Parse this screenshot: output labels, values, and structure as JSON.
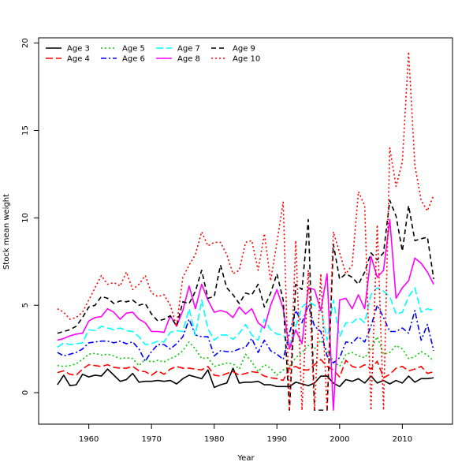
{
  "chart_data": {
    "type": "line",
    "title": "",
    "xlabel": "Year",
    "ylabel": "Stock mean weight",
    "xlim": [
      1952,
      2018
    ],
    "ylim": [
      -1.8,
      20.3
    ],
    "xticks": [
      1960,
      1970,
      1980,
      1990,
      2000,
      2010
    ],
    "yticks": [
      0,
      5,
      10,
      15,
      20
    ],
    "grid": false,
    "legend_position": "top-left",
    "x": [
      1955,
      1956,
      1957,
      1958,
      1959,
      1960,
      1961,
      1962,
      1963,
      1964,
      1965,
      1966,
      1967,
      1968,
      1969,
      1970,
      1971,
      1972,
      1973,
      1974,
      1975,
      1976,
      1977,
      1978,
      1979,
      1980,
      1981,
      1982,
      1983,
      1984,
      1985,
      1986,
      1987,
      1988,
      1989,
      1990,
      1991,
      1992,
      1993,
      1994,
      1995,
      1996,
      1997,
      1998,
      1999,
      2000,
      2001,
      2002,
      2003,
      2004,
      2005,
      2006,
      2007,
      2008,
      2009,
      2010,
      2011,
      2012,
      2013,
      2014,
      2015
    ],
    "series": [
      {
        "name": "Age 3",
        "color": "#000000",
        "dash": "solid",
        "values": [
          0.45,
          1.0,
          0.4,
          0.45,
          1.05,
          0.9,
          1.0,
          0.95,
          1.35,
          1.0,
          0.65,
          0.75,
          1.1,
          0.6,
          0.65,
          0.65,
          0.7,
          0.65,
          0.7,
          0.5,
          0.8,
          1.0,
          0.9,
          0.8,
          1.3,
          0.3,
          0.45,
          0.55,
          1.4,
          0.55,
          0.6,
          0.6,
          0.65,
          0.45,
          0.45,
          0.35,
          0.35,
          0.35,
          0.6,
          0.5,
          0.4,
          0.55,
          0.95,
          0.95,
          0.55,
          0.35,
          0.75,
          0.65,
          0.8,
          0.55,
          0.95,
          0.55,
          0.7,
          0.5,
          0.7,
          0.55,
          0.95,
          0.6,
          0.8,
          0.8,
          0.85
        ]
      },
      {
        "name": "Age 4",
        "color": "#ff0000",
        "dash": "longdash",
        "values": [
          1.15,
          1.25,
          1.05,
          1.0,
          1.35,
          1.6,
          1.55,
          1.5,
          1.6,
          1.45,
          1.4,
          1.4,
          1.5,
          1.25,
          1.2,
          1.0,
          1.25,
          1.05,
          1.35,
          1.5,
          1.4,
          1.4,
          1.35,
          1.3,
          1.5,
          1.0,
          0.95,
          1.1,
          1.2,
          1.0,
          1.1,
          1.2,
          1.15,
          0.95,
          0.85,
          0.8,
          0.7,
          1.4,
          1.5,
          1.3,
          1.3,
          1.6,
          1.9,
          1.5,
          1.3,
          0.9,
          1.85,
          1.5,
          1.4,
          1.6,
          1.35,
          1.8,
          0.85,
          1.05,
          1.4,
          1.5,
          1.25,
          1.35,
          1.5,
          1.1,
          1.2
        ]
      },
      {
        "name": "Age 5",
        "color": "#00cd00",
        "dash": "dotted",
        "values": [
          1.55,
          1.5,
          1.55,
          1.65,
          1.9,
          2.2,
          2.25,
          2.15,
          2.2,
          2.1,
          1.95,
          2.0,
          1.95,
          1.55,
          1.9,
          1.75,
          1.85,
          1.75,
          1.95,
          2.1,
          2.4,
          2.9,
          2.5,
          1.95,
          2.0,
          1.5,
          1.6,
          1.7,
          1.65,
          1.35,
          2.2,
          1.75,
          1.2,
          1.6,
          1.4,
          1.0,
          1.3,
          1.5,
          2.0,
          2.3,
          2.7,
          2.5,
          3.0,
          2.4,
          1.8,
          1.5,
          2.2,
          2.3,
          2.1,
          2.0,
          2.5,
          3.2,
          2.2,
          2.3,
          2.7,
          2.5,
          1.95,
          2.05,
          2.35,
          2.15,
          1.8
        ]
      },
      {
        "name": "Age 6",
        "color": "#0000ff",
        "dash": "dashdot",
        "values": [
          2.3,
          2.1,
          2.2,
          2.3,
          2.5,
          2.85,
          2.9,
          2.95,
          2.95,
          2.85,
          2.95,
          2.8,
          2.9,
          2.5,
          1.8,
          2.35,
          2.75,
          2.75,
          2.5,
          2.8,
          3.2,
          4.2,
          3.3,
          3.2,
          3.2,
          2.1,
          2.4,
          2.35,
          2.35,
          2.5,
          2.6,
          3.1,
          2.3,
          3.0,
          2.4,
          2.2,
          1.9,
          3.4,
          4.7,
          4.0,
          5.0,
          3.8,
          3.5,
          2.1,
          1.7,
          2.0,
          2.9,
          2.85,
          3.2,
          2.9,
          3.8,
          5.0,
          4.3,
          3.5,
          3.5,
          3.7,
          3.4,
          4.7,
          3.0,
          3.9,
          2.4
        ]
      },
      {
        "name": "Age 7",
        "color": "#00ffff",
        "dash": "longdash",
        "values": [
          2.6,
          2.85,
          2.75,
          2.8,
          2.85,
          3.6,
          3.55,
          3.8,
          3.7,
          3.6,
          3.7,
          3.55,
          3.5,
          3.2,
          2.75,
          2.8,
          2.95,
          2.9,
          3.45,
          3.55,
          3.5,
          4.8,
          3.3,
          5.3,
          3.65,
          3.0,
          3.3,
          3.3,
          3.05,
          3.4,
          3.9,
          3.3,
          3.0,
          4.2,
          3.6,
          3.35,
          3.3,
          2.7,
          3.8,
          4.9,
          5.2,
          5.0,
          4.8,
          3.0,
          5.3,
          3.2,
          4.0,
          4.0,
          4.3,
          4.0,
          5.6,
          6.0,
          5.8,
          5.5,
          4.5,
          4.6,
          5.5,
          6.0,
          4.6,
          4.8,
          4.7
        ]
      },
      {
        "name": "Age 8",
        "color": "#ff00ff",
        "dash": "solid",
        "values": [
          3.0,
          3.1,
          3.25,
          3.35,
          3.4,
          4.1,
          4.3,
          4.35,
          4.8,
          4.6,
          4.2,
          4.55,
          4.6,
          4.2,
          4.0,
          3.5,
          3.5,
          3.45,
          4.4,
          3.8,
          4.7,
          6.1,
          4.8,
          6.2,
          5.3,
          4.6,
          4.7,
          4.6,
          4.3,
          4.9,
          4.5,
          4.8,
          4.0,
          3.7,
          5.0,
          5.9,
          4.8,
          2.5,
          3.6,
          2.8,
          6.0,
          5.9,
          4.7,
          6.8,
          -1.0,
          5.3,
          5.4,
          4.8,
          5.6,
          4.8,
          7.8,
          6.6,
          7.0,
          9.9,
          5.4,
          6.0,
          6.4,
          7.7,
          7.4,
          6.9,
          6.2
        ]
      },
      {
        "name": "Age 9",
        "color": "#000000",
        "dash": "dashed",
        "values": [
          3.4,
          3.5,
          3.6,
          3.8,
          4.3,
          4.9,
          5.0,
          5.5,
          5.4,
          5.1,
          5.25,
          5.2,
          5.3,
          5.0,
          5.1,
          4.5,
          4.1,
          4.2,
          4.4,
          3.8,
          5.2,
          5.1,
          5.8,
          7.0,
          5.4,
          5.5,
          7.3,
          6.0,
          5.6,
          5.1,
          5.7,
          5.6,
          6.2,
          4.9,
          5.7,
          6.8,
          5.3,
          -1.0,
          6.2,
          5.9,
          9.9,
          -1.0,
          -1.0,
          -1.0,
          8.5,
          6.5,
          6.8,
          6.6,
          6.2,
          6.9,
          8.0,
          7.6,
          8.0,
          11.0,
          10.1,
          8.1,
          10.7,
          8.7,
          8.8,
          8.9,
          6.5
        ]
      },
      {
        "name": "Age 10",
        "color": "#ff0000",
        "dash": "dotted",
        "values": [
          4.8,
          4.6,
          4.2,
          4.3,
          4.6,
          5.3,
          6.0,
          6.7,
          6.2,
          6.3,
          6.1,
          6.9,
          5.9,
          6.2,
          6.7,
          5.7,
          5.5,
          5.6,
          5.0,
          3.8,
          6.6,
          7.3,
          7.9,
          9.2,
          8.4,
          8.6,
          8.6,
          7.9,
          6.8,
          7.0,
          8.6,
          8.7,
          7.0,
          9.1,
          6.4,
          8.6,
          10.9,
          -1.0,
          8.7,
          -1.0,
          7.0,
          -1.0,
          6.8,
          -1.0,
          9.2,
          8.0,
          6.8,
          7.3,
          11.5,
          10.7,
          -1.0,
          9.6,
          -1.0,
          14.0,
          11.8,
          13.2,
          19.5,
          13.0,
          11.0,
          10.4,
          11.3
        ]
      }
    ]
  }
}
